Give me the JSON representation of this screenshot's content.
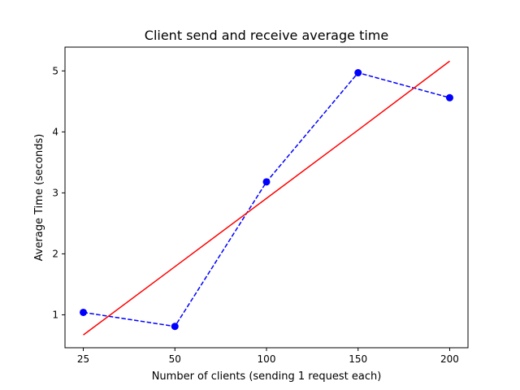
{
  "chart_data": {
    "type": "line",
    "title": "Client send and receive average time",
    "xlabel": "Number of clients (sending 1 request each)",
    "ylabel": "Average Time (seconds)",
    "x_categories": [
      "25",
      "50",
      "100",
      "150",
      "200"
    ],
    "y_ticks": [
      "1",
      "2",
      "3",
      "4",
      "5"
    ],
    "ylim": [
      0.46,
      5.39
    ],
    "grid": false,
    "series": [
      {
        "style": "dashed-with-circle-markers",
        "color": "#0000ff",
        "values": [
          1.04,
          0.81,
          3.18,
          4.97,
          4.56
        ]
      },
      {
        "style": "solid",
        "color": "#ff0000",
        "values": [
          0.67,
          1.79,
          2.91,
          4.03,
          5.16
        ]
      }
    ]
  }
}
